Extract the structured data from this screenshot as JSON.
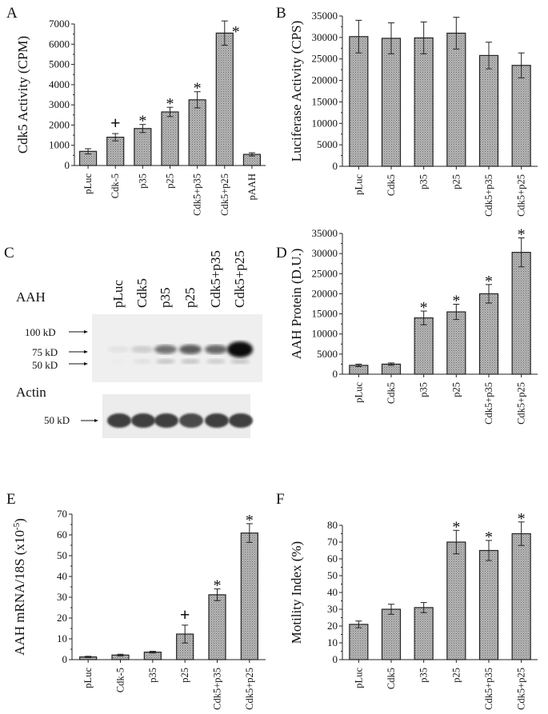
{
  "chart_data": [
    {
      "panel": "A",
      "type": "bar",
      "categories": [
        "pLuc",
        "Cdk-5",
        "p35",
        "p25",
        "Cdk5+p35",
        "Cdk5+p25",
        "pAAH"
      ],
      "values": [
        700,
        1400,
        1830,
        2650,
        3250,
        6550,
        550
      ],
      "errors": [
        130,
        180,
        200,
        230,
        400,
        600,
        80
      ],
      "markers": [
        "",
        "+",
        "*",
        "*",
        "*",
        "*",
        ""
      ],
      "ylabel": "Cdk5 Activity (CPM)",
      "ylim": [
        0,
        7000
      ],
      "yticks": [
        0,
        1000,
        2000,
        3000,
        4000,
        5000,
        6000,
        7000
      ]
    },
    {
      "panel": "B",
      "type": "bar",
      "categories": [
        "pLuc",
        "Cdk5",
        "p35",
        "p25",
        "Cdk5+p35",
        "Cdk5+p25"
      ],
      "values": [
        30200,
        29800,
        29900,
        31000,
        25800,
        23500
      ],
      "errors": [
        3800,
        3600,
        3700,
        3700,
        3100,
        2900
      ],
      "markers": [
        "",
        "",
        "",
        "",
        "",
        ""
      ],
      "ylabel": "Luciferase Activity (CPS)",
      "ylim": [
        0,
        35000
      ],
      "yticks": [
        0,
        5000,
        10000,
        15000,
        20000,
        25000,
        30000,
        35000
      ]
    },
    {
      "panel": "D",
      "type": "bar",
      "categories": [
        "pLuc",
        "Cdk5",
        "p35",
        "p25",
        "Cdk5+p35",
        "Cdk5+p25"
      ],
      "values": [
        2200,
        2500,
        14000,
        15500,
        20000,
        30300
      ],
      "errors": [
        300,
        300,
        1700,
        1900,
        2300,
        3600
      ],
      "markers": [
        "",
        "",
        "*",
        "*",
        "*",
        "*"
      ],
      "ylabel": "AAH Protein (D.U.)",
      "ylim": [
        0,
        35000
      ],
      "yticks": [
        0,
        5000,
        10000,
        15000,
        20000,
        25000,
        30000,
        35000
      ]
    },
    {
      "panel": "E",
      "type": "bar",
      "categories": [
        "pLuc",
        "Cdk-5",
        "p35",
        "p25",
        "Cdk5+p35",
        "Cdk5+p25"
      ],
      "values": [
        1.3,
        2.2,
        3.6,
        12.3,
        31.2,
        60.9
      ],
      "errors": [
        0.3,
        0.4,
        0.4,
        4.3,
        2.8,
        4.5
      ],
      "markers": [
        "",
        "",
        "",
        "+",
        "*",
        "*"
      ],
      "ylabel": "AAH mRNA/18S (x10-5)",
      "ylim": [
        0,
        70
      ],
      "yticks": [
        0,
        10,
        20,
        30,
        40,
        50,
        60,
        70
      ]
    },
    {
      "panel": "F",
      "type": "bar",
      "categories": [
        "pLuc",
        "Cdk5",
        "p35",
        "p25",
        "Cdk5+p35",
        "Cdk5+p25"
      ],
      "values": [
        21,
        30,
        31,
        70,
        65,
        75
      ],
      "errors": [
        2,
        3,
        3,
        7,
        6,
        7
      ],
      "markers": [
        "",
        "",
        "",
        "*",
        "*",
        "*"
      ],
      "ylabel": "Motility Index (%)",
      "ylim": [
        0,
        80
      ],
      "yticks": [
        0,
        10,
        20,
        30,
        40,
        50,
        60,
        70,
        80
      ]
    }
  ],
  "western_blot": {
    "panel": "C",
    "lanes": [
      "pLuc",
      "Cdk5",
      "p35",
      "p25",
      "Cdk5+p35",
      "Cdk5+p25"
    ],
    "aah_label": "AAH",
    "actin_label": "Actin",
    "aah_markers": [
      "100 kD",
      "75 kD",
      "50 kD"
    ],
    "actin_markers": [
      "50 kD"
    ],
    "aah_75_intensity": [
      0.05,
      0.15,
      0.55,
      0.65,
      0.6,
      1.0
    ],
    "aah_50_intensity": [
      0.02,
      0.1,
      0.3,
      0.3,
      0.25,
      0.3
    ],
    "actin_intensity": [
      0.85,
      0.85,
      0.85,
      0.8,
      0.85,
      0.85
    ]
  },
  "colors": {
    "bar_fill": "#a8a8a8",
    "bar_stroke": "#222222",
    "axis": "#222222"
  }
}
